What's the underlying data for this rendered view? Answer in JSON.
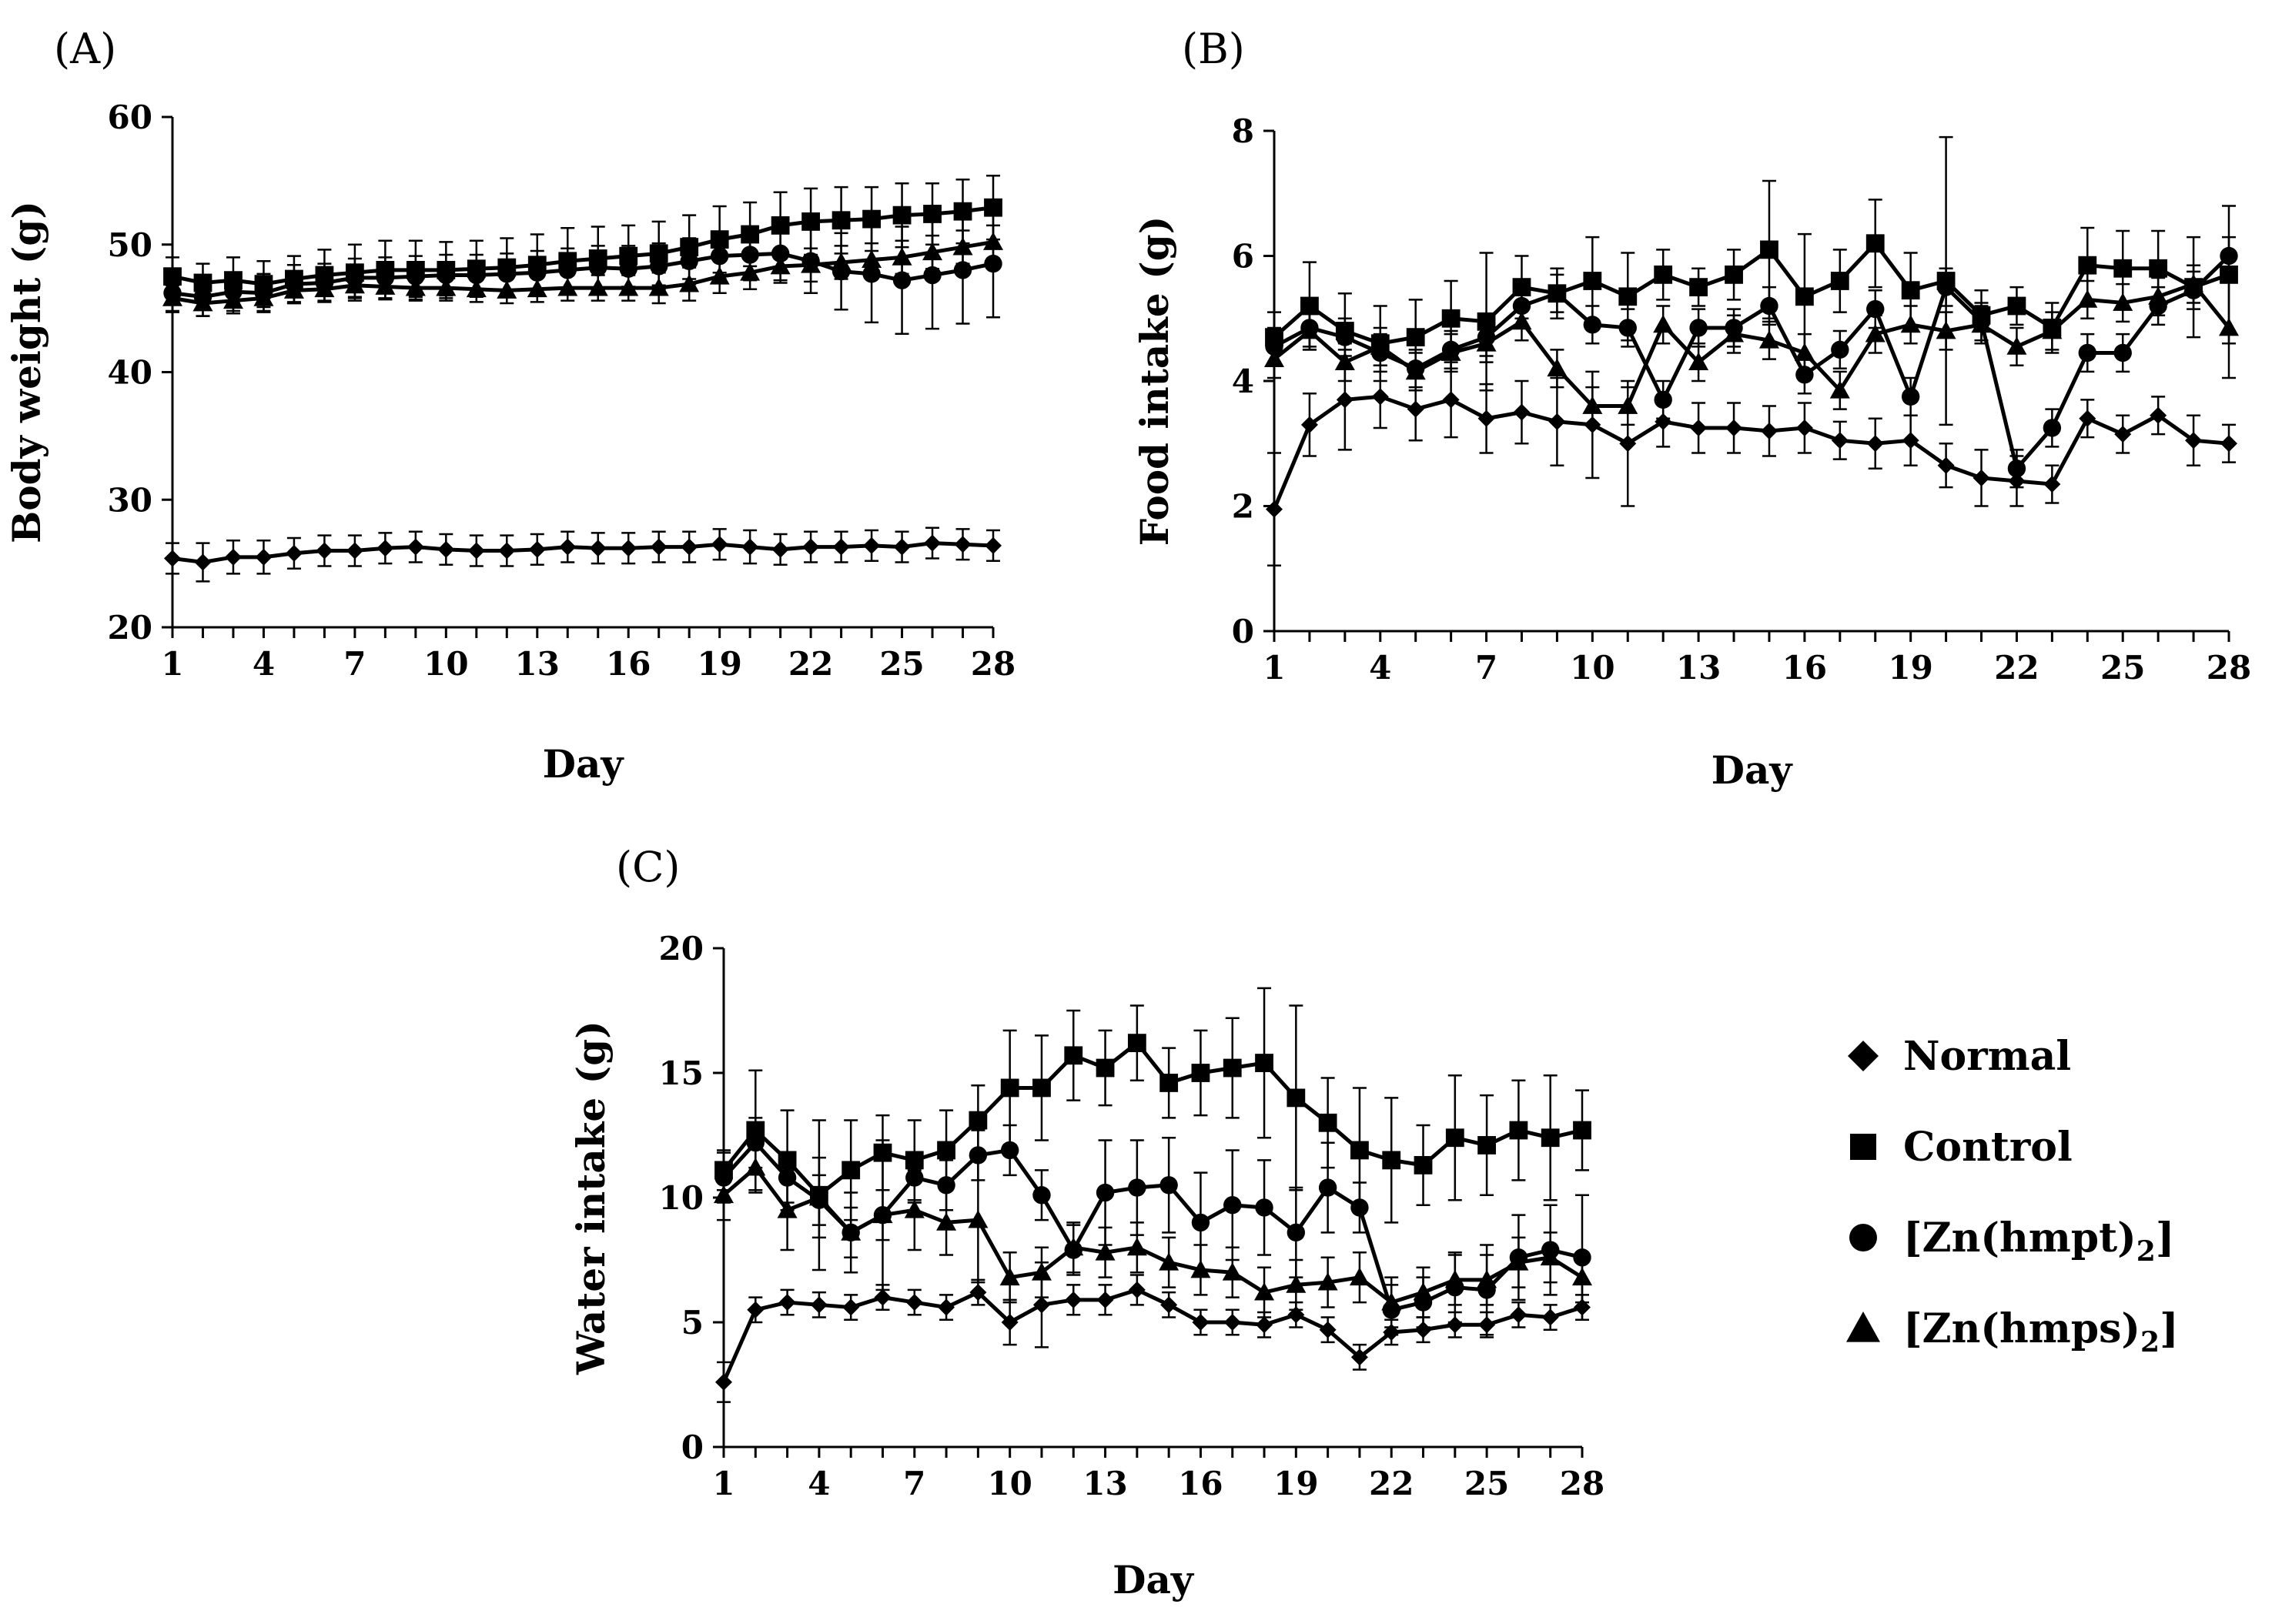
{
  "chart_data": [
    {
      "type": "line",
      "panel_label": "(A)",
      "xlabel": "Day",
      "ylabel": "Body weight (g)",
      "ylim": [
        20,
        60
      ],
      "yticks": [
        20,
        30,
        40,
        50,
        60
      ],
      "xlim": [
        1,
        28
      ],
      "xticks": [
        1,
        4,
        7,
        10,
        13,
        16,
        19,
        22,
        25,
        28
      ],
      "x": [
        1,
        2,
        3,
        4,
        5,
        6,
        7,
        8,
        9,
        10,
        11,
        12,
        13,
        14,
        15,
        16,
        17,
        18,
        19,
        20,
        21,
        22,
        23,
        24,
        25,
        26,
        27,
        28
      ],
      "series": [
        {
          "name": "Normal",
          "marker": "diamond",
          "values": [
            25.4,
            25.1,
            25.5,
            25.5,
            25.8,
            26.0,
            26.0,
            26.2,
            26.3,
            26.1,
            26.0,
            26.0,
            26.1,
            26.3,
            26.2,
            26.2,
            26.3,
            26.3,
            26.5,
            26.3,
            26.1,
            26.3,
            26.3,
            26.4,
            26.3,
            26.6,
            26.5,
            26.4
          ],
          "errors": [
            1.2,
            1.5,
            1.3,
            1.3,
            1.2,
            1.2,
            1.2,
            1.2,
            1.2,
            1.2,
            1.2,
            1.2,
            1.2,
            1.2,
            1.2,
            1.2,
            1.2,
            1.2,
            1.2,
            1.3,
            1.2,
            1.2,
            1.2,
            1.2,
            1.2,
            1.2,
            1.2,
            1.2
          ]
        },
        {
          "name": "Control",
          "marker": "square",
          "values": [
            47.5,
            47.0,
            47.2,
            46.9,
            47.3,
            47.6,
            47.8,
            48.0,
            48.0,
            48.0,
            48.1,
            48.2,
            48.4,
            48.7,
            48.9,
            49.1,
            49.3,
            49.8,
            50.4,
            50.8,
            51.5,
            51.8,
            51.9,
            52.0,
            52.3,
            52.4,
            52.6,
            52.9
          ],
          "errors": [
            1.5,
            1.5,
            1.8,
            1.8,
            1.8,
            2.0,
            2.2,
            2.3,
            2.3,
            2.2,
            2.2,
            2.3,
            2.4,
            2.6,
            2.5,
            2.4,
            2.5,
            2.5,
            2.6,
            2.5,
            2.6,
            2.6,
            2.6,
            2.5,
            2.5,
            2.4,
            2.5,
            2.5
          ]
        },
        {
          "name": "[Zn(hmpt)2]",
          "marker": "circle",
          "values": [
            46.2,
            45.9,
            46.3,
            46.2,
            46.9,
            47.0,
            47.4,
            47.4,
            47.5,
            47.6,
            47.6,
            47.7,
            47.8,
            48.0,
            48.2,
            48.1,
            48.3,
            48.7,
            49.1,
            49.2,
            49.3,
            48.7,
            47.9,
            47.7,
            47.2,
            47.6,
            48.0,
            48.5
          ],
          "errors": [
            1.5,
            1.5,
            1.5,
            1.5,
            1.5,
            1.5,
            1.5,
            1.6,
            1.6,
            1.6,
            1.6,
            1.6,
            1.7,
            1.7,
            1.7,
            1.8,
            1.8,
            1.8,
            1.8,
            2.0,
            2.1,
            2.5,
            3.0,
            3.8,
            4.2,
            4.2,
            4.2,
            4.2
          ]
        },
        {
          "name": "[Zn(hmps)2]",
          "marker": "triangle",
          "values": [
            45.8,
            45.4,
            45.6,
            45.8,
            46.4,
            46.5,
            46.8,
            46.7,
            46.6,
            46.6,
            46.5,
            46.4,
            46.5,
            46.6,
            46.6,
            46.6,
            46.6,
            46.9,
            47.5,
            47.8,
            48.3,
            48.4,
            48.6,
            48.8,
            49.0,
            49.4,
            49.8,
            50.2
          ],
          "errors": [
            1.0,
            1.0,
            1.0,
            1.0,
            1.0,
            1.0,
            1.0,
            1.0,
            1.0,
            1.0,
            1.0,
            1.0,
            1.0,
            1.0,
            1.0,
            1.0,
            1.2,
            1.3,
            1.3,
            1.3,
            1.3,
            1.3,
            1.3,
            1.3,
            1.3,
            1.3,
            1.3,
            1.3
          ]
        }
      ]
    },
    {
      "type": "line",
      "panel_label": "(B)",
      "xlabel": "Day",
      "ylabel": "Food intake (g)",
      "ylim": [
        0,
        8
      ],
      "yticks": [
        0,
        2,
        4,
        6,
        8
      ],
      "xlim": [
        1,
        28
      ],
      "xticks": [
        1,
        4,
        7,
        10,
        13,
        16,
        19,
        22,
        25,
        28
      ],
      "x": [
        1,
        2,
        3,
        4,
        5,
        6,
        7,
        8,
        9,
        10,
        11,
        12,
        13,
        14,
        15,
        16,
        17,
        18,
        19,
        20,
        21,
        22,
        23,
        24,
        25,
        26,
        27,
        28
      ],
      "series": [
        {
          "name": "Normal",
          "marker": "diamond",
          "values": [
            1.95,
            3.3,
            3.7,
            3.75,
            3.55,
            3.7,
            3.4,
            3.5,
            3.35,
            3.3,
            3.0,
            3.35,
            3.25,
            3.25,
            3.2,
            3.25,
            3.05,
            3.0,
            3.05,
            2.65,
            2.45,
            2.4,
            2.35,
            3.4,
            3.15,
            3.45,
            3.05,
            3.0
          ],
          "errors": [
            0.9,
            0.5,
            0.8,
            0.5,
            0.5,
            0.6,
            0.55,
            0.5,
            0.7,
            0.85,
            1.0,
            0.4,
            0.4,
            0.4,
            0.4,
            0.4,
            0.3,
            0.4,
            0.4,
            0.35,
            0.45,
            0.4,
            0.3,
            0.3,
            0.3,
            0.3,
            0.4,
            0.3
          ]
        },
        {
          "name": "Control",
          "marker": "square",
          "values": [
            4.7,
            5.2,
            4.8,
            4.6,
            4.7,
            5.0,
            4.95,
            5.5,
            5.4,
            5.6,
            5.35,
            5.7,
            5.5,
            5.7,
            6.1,
            5.35,
            5.6,
            6.2,
            5.45,
            5.6,
            5.05,
            5.2,
            4.85,
            5.85,
            5.8,
            5.8,
            5.5,
            5.7
          ],
          "errors": [
            0.4,
            0.7,
            0.6,
            0.6,
            0.6,
            0.6,
            1.1,
            0.5,
            0.4,
            0.7,
            0.7,
            0.4,
            0.3,
            0.4,
            1.1,
            1.0,
            0.5,
            0.7,
            0.6,
            2.3,
            0.4,
            0.3,
            0.4,
            0.6,
            0.6,
            0.6,
            0.8,
            1.1
          ]
        },
        {
          "name": "[Zn(hmpt)2]",
          "marker": "circle",
          "values": [
            4.55,
            4.85,
            4.7,
            4.45,
            4.2,
            4.5,
            4.7,
            5.2,
            5.4,
            4.9,
            4.85,
            3.7,
            4.85,
            4.85,
            5.2,
            4.1,
            4.5,
            5.15,
            3.75,
            5.5,
            4.95,
            2.6,
            3.25,
            4.45,
            4.45,
            5.2,
            5.45,
            6.0
          ],
          "errors": [
            0.3,
            0.3,
            0.3,
            0.3,
            0.3,
            0.3,
            0.3,
            0.3,
            0.3,
            0.3,
            0.3,
            0.3,
            0.3,
            0.3,
            0.3,
            0.3,
            0.3,
            0.3,
            0.3,
            0.3,
            0.3,
            0.3,
            0.3,
            0.3,
            0.3,
            0.3,
            0.3,
            0.3
          ]
        },
        {
          "name": "[Zn(hmps)2]",
          "marker": "triangle",
          "values": [
            4.35,
            4.8,
            4.3,
            4.55,
            4.15,
            4.45,
            4.6,
            4.95,
            4.2,
            3.6,
            3.6,
            4.9,
            4.3,
            4.75,
            4.65,
            4.45,
            3.85,
            4.75,
            4.9,
            4.8,
            4.9,
            4.55,
            4.8,
            5.3,
            5.25,
            5.35,
            5.55,
            4.85
          ],
          "errors": [
            0.3,
            0.3,
            0.3,
            0.3,
            0.3,
            0.3,
            0.3,
            0.3,
            0.3,
            0.3,
            0.3,
            0.3,
            0.3,
            0.3,
            0.3,
            0.3,
            0.3,
            0.3,
            0.3,
            0.3,
            0.3,
            0.3,
            0.3,
            0.3,
            0.3,
            0.3,
            0.3,
            0.8
          ]
        }
      ]
    },
    {
      "type": "line",
      "panel_label": "(C)",
      "xlabel": "Day",
      "ylabel": "Water intake (g)",
      "ylim": [
        0,
        20
      ],
      "yticks": [
        0,
        5,
        10,
        15,
        20
      ],
      "xlim": [
        1,
        28
      ],
      "xticks": [
        1,
        4,
        7,
        10,
        13,
        16,
        19,
        22,
        25,
        28
      ],
      "x": [
        1,
        2,
        3,
        4,
        5,
        6,
        7,
        8,
        9,
        10,
        11,
        12,
        13,
        14,
        15,
        16,
        17,
        18,
        19,
        20,
        21,
        22,
        23,
        24,
        25,
        26,
        27,
        28
      ],
      "series": [
        {
          "name": "Normal",
          "marker": "diamond",
          "values": [
            2.6,
            5.5,
            5.8,
            5.7,
            5.6,
            6.0,
            5.8,
            5.6,
            6.2,
            5.0,
            5.7,
            5.9,
            5.9,
            6.3,
            5.7,
            5.0,
            5.0,
            4.9,
            5.3,
            4.7,
            3.6,
            4.6,
            4.7,
            4.9,
            4.9,
            5.3,
            5.2,
            5.6
          ],
          "errors": [
            0.8,
            0.5,
            0.5,
            0.5,
            0.5,
            0.5,
            0.5,
            0.5,
            0.5,
            0.9,
            1.7,
            0.6,
            0.6,
            0.6,
            0.5,
            0.5,
            0.5,
            0.5,
            0.5,
            0.5,
            0.5,
            0.5,
            0.5,
            0.5,
            0.5,
            0.5,
            0.5,
            0.5
          ]
        },
        {
          "name": "Control",
          "marker": "square",
          "values": [
            11.1,
            12.7,
            11.5,
            10.1,
            11.1,
            11.8,
            11.5,
            11.9,
            13.1,
            14.4,
            14.4,
            15.7,
            15.2,
            16.2,
            14.6,
            15.0,
            15.2,
            15.4,
            14.0,
            13.0,
            11.9,
            11.5,
            11.3,
            12.4,
            12.1,
            12.7,
            12.4,
            12.7
          ],
          "errors": [
            0.8,
            2.4,
            2.0,
            3.0,
            2.0,
            1.5,
            1.6,
            1.6,
            1.4,
            2.3,
            2.1,
            1.8,
            1.5,
            1.5,
            1.4,
            1.7,
            2.0,
            3.0,
            3.7,
            1.8,
            2.5,
            2.5,
            1.6,
            2.5,
            2.0,
            2.0,
            2.5,
            1.6
          ]
        },
        {
          "name": "[Zn(hmpt)2]",
          "marker": "circle",
          "values": [
            10.8,
            12.2,
            10.8,
            9.9,
            8.6,
            9.3,
            10.8,
            10.5,
            11.7,
            11.9,
            10.1,
            7.9,
            10.2,
            10.4,
            10.5,
            9.0,
            9.7,
            9.6,
            8.6,
            10.4,
            9.6,
            5.5,
            5.8,
            6.4,
            6.3,
            7.6,
            7.9,
            7.6
          ],
          "errors": [
            1.0,
            1.0,
            1.0,
            1.0,
            1.0,
            1.0,
            1.0,
            1.0,
            1.0,
            1.0,
            1.0,
            1.0,
            2.1,
            1.9,
            1.9,
            2.0,
            2.2,
            1.9,
            1.8,
            1.8,
            1.0,
            1.0,
            1.0,
            1.4,
            1.8,
            1.7,
            1.8,
            2.5
          ]
        },
        {
          "name": "[Zn(hmps)2]",
          "marker": "triangle",
          "values": [
            10.1,
            11.2,
            9.5,
            10.0,
            8.6,
            9.3,
            9.5,
            9.0,
            9.1,
            6.8,
            7.0,
            8.0,
            7.8,
            8.0,
            7.4,
            7.1,
            7.0,
            6.2,
            6.5,
            6.6,
            6.8,
            5.8,
            6.2,
            6.7,
            6.7,
            7.4,
            7.6,
            6.8
          ],
          "errors": [
            1.0,
            1.0,
            1.6,
            1.6,
            1.6,
            3.0,
            1.6,
            1.3,
            2.5,
            1.0,
            1.0,
            1.0,
            1.0,
            1.0,
            1.0,
            1.0,
            1.0,
            1.0,
            1.0,
            1.0,
            1.0,
            1.0,
            1.0,
            1.0,
            1.0,
            1.0,
            1.0,
            1.0
          ]
        }
      ]
    }
  ],
  "legend": {
    "items": [
      {
        "marker": "diamond",
        "label": "Normal"
      },
      {
        "marker": "square",
        "label": "Control"
      },
      {
        "marker": "circle",
        "label": "[Zn(hmpt)",
        "sub": "2",
        "close": "]"
      },
      {
        "marker": "triangle",
        "label": "[Zn(hmps)",
        "sub": "2",
        "close": "]"
      }
    ]
  },
  "colors": {
    "ink": "#000000",
    "background": "#ffffff"
  }
}
